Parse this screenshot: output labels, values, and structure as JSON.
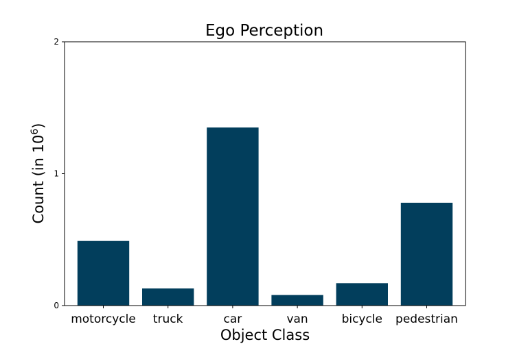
{
  "chart_data": {
    "type": "bar",
    "title": "Ego Perception",
    "xlabel": "Object Class",
    "ylabel": "Count (in 10",
    "ylabel_superscript": "6",
    "ylabel_suffix": ")",
    "categories": [
      "motorcycle",
      "truck",
      "car",
      "van",
      "bicycle",
      "pedestrian"
    ],
    "values": [
      0.49,
      0.13,
      1.35,
      0.08,
      0.17,
      0.78
    ],
    "ylim": [
      0,
      2
    ],
    "yticks": [
      0,
      1,
      2
    ],
    "ytick_labels": [
      "0",
      "1",
      "2"
    ],
    "grid": false,
    "bar_color": "#023e5c"
  }
}
